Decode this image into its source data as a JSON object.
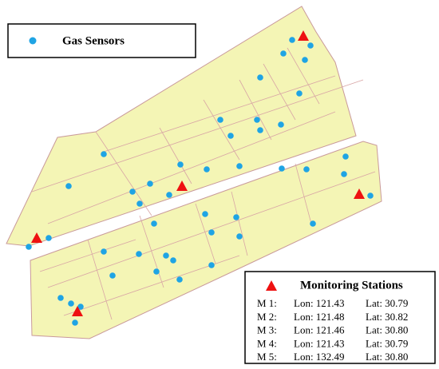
{
  "legend": {
    "sensors": "Gas Sensors"
  },
  "stations": {
    "title": "Monitoring Stations",
    "rows": [
      {
        "id": "M 1:",
        "lon": "Lon: 121.43",
        "lat": "Lat: 30.79"
      },
      {
        "id": "M 2:",
        "lon": "Lon: 121.48",
        "lat": "Lat: 30.82"
      },
      {
        "id": "M 3:",
        "lon": "Lon: 121.46",
        "lat": "Lat: 30.80"
      },
      {
        "id": "M 4:",
        "lon": "Lon: 121.43",
        "lat": "Lat: 30.79"
      },
      {
        "id": "M 5:",
        "lon": "Lon: 132.49",
        "lat": "Lat: 30.80"
      }
    ]
  }
}
